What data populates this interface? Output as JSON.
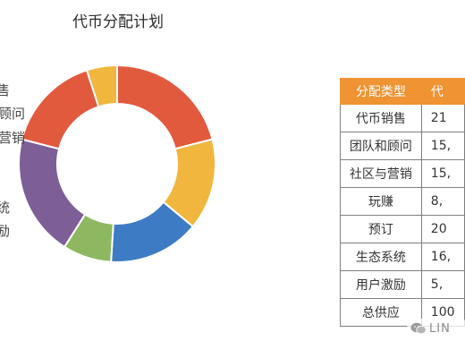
{
  "chart_data": {
    "type": "pie",
    "title": "代币分配计划",
    "donut": true,
    "categories": [
      "代币销售",
      "团队和顾问",
      "社区与营销",
      "玩赚",
      "预订",
      "生态系统",
      "用户激励"
    ],
    "values": [
      21,
      15,
      15,
      8,
      20,
      16,
      5
    ],
    "colors": [
      "#e25a3e",
      "#f0b63e",
      "#3d7cc4",
      "#8db861",
      "#7d5e96",
      "#e25a3e",
      "#f0b63e"
    ],
    "visible_labels": [
      "售",
      "顾问",
      "营销",
      "统",
      "励"
    ]
  },
  "table": {
    "headers": [
      "分配类型",
      "代"
    ],
    "rows": [
      [
        "代币销售",
        "21"
      ],
      [
        "团队和顾问",
        "15,"
      ],
      [
        "社区与营销",
        "15,"
      ],
      [
        "玩赚",
        "8,"
      ],
      [
        "预订",
        "20"
      ],
      [
        "生态系统",
        "16,"
      ],
      [
        "用户激励",
        "5,"
      ],
      [
        "总供应",
        "100"
      ]
    ],
    "header_color": "#ef9333"
  },
  "watermark": {
    "text": "LIN",
    "icon": "wechat-icon"
  }
}
